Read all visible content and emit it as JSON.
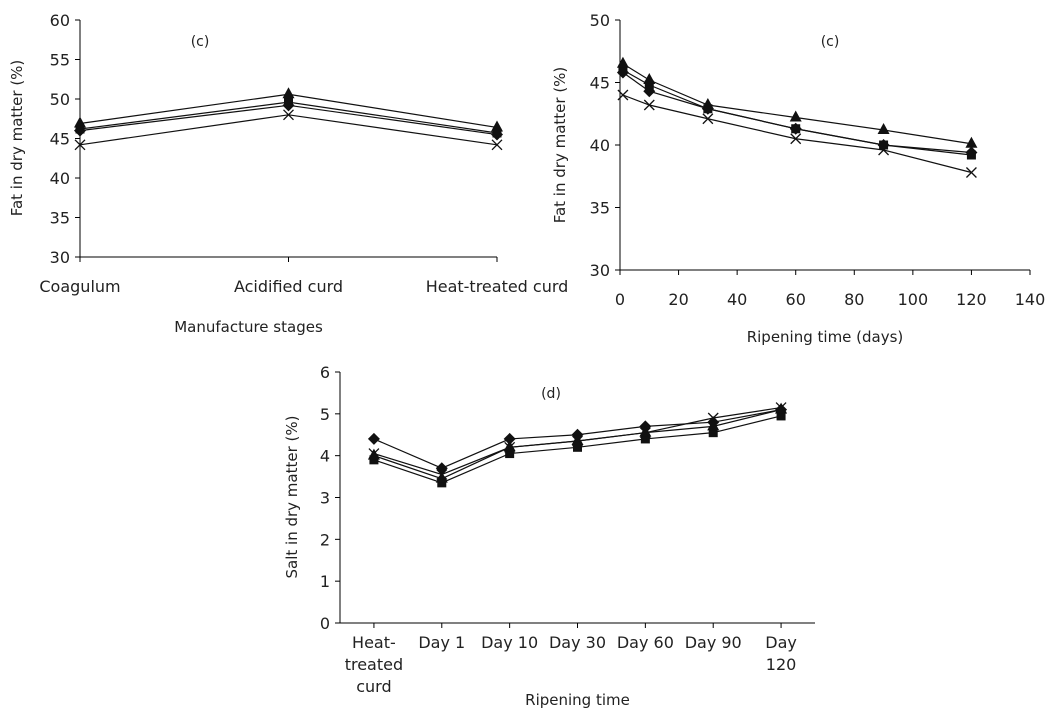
{
  "chart_data": [
    {
      "type": "line",
      "panel_label": "(c)",
      "title": "",
      "xlabel": "Manufacture stages",
      "ylabel": "Fat in dry matter (%)",
      "categories": [
        "Coagulum",
        "Acidified curd",
        "Heat-treated curd"
      ],
      "ylim": [
        30,
        60
      ],
      "yticks": [
        30,
        35,
        40,
        45,
        50,
        55,
        60
      ],
      "grid": false,
      "series": [
        {
          "marker": "diamond",
          "values": [
            46.0,
            49.2,
            45.5
          ]
        },
        {
          "marker": "square",
          "values": [
            46.2,
            49.6,
            45.7
          ]
        },
        {
          "marker": "triangle",
          "values": [
            46.9,
            50.6,
            46.4
          ]
        },
        {
          "marker": "x",
          "values": [
            44.2,
            48.0,
            44.2
          ]
        }
      ]
    },
    {
      "type": "line",
      "panel_label": "(c)",
      "title": "",
      "xlabel": "Ripening time (days)",
      "ylabel": "Fat in dry matter (%)",
      "ylim": [
        30,
        50
      ],
      "xlim": [
        0,
        140
      ],
      "yticks": [
        30,
        35,
        40,
        45,
        50
      ],
      "xticks": [
        0,
        20,
        40,
        60,
        80,
        100,
        120,
        140
      ],
      "grid": false,
      "series": [
        {
          "marker": "diamond",
          "x": [
            1,
            10,
            30,
            60,
            90,
            120
          ],
          "values": [
            45.8,
            44.3,
            42.9,
            41.3,
            40.0,
            39.4
          ]
        },
        {
          "marker": "square",
          "x": [
            1,
            10,
            30,
            60,
            90,
            120
          ],
          "values": [
            46.0,
            44.8,
            42.9,
            41.3,
            40.0,
            39.2
          ]
        },
        {
          "marker": "triangle",
          "x": [
            1,
            10,
            30,
            60,
            90,
            120
          ],
          "values": [
            46.5,
            45.2,
            43.2,
            42.2,
            41.2,
            40.1
          ]
        },
        {
          "marker": "x",
          "x": [
            1,
            10,
            30,
            60,
            90,
            120
          ],
          "values": [
            44.0,
            43.2,
            42.1,
            40.5,
            39.6,
            37.8
          ]
        }
      ]
    },
    {
      "type": "line",
      "panel_label": "(d)",
      "title": "",
      "xlabel": "Ripening time",
      "ylabel": "Salt in dry matter (%)",
      "categories": [
        "Heat-treated curd",
        "Day 1",
        "Day 10",
        "Day 30",
        "Day 60",
        "Day 90",
        "Day 120"
      ],
      "category_lines": [
        [
          "Heat-",
          "treated",
          "curd"
        ],
        [
          "Day 1"
        ],
        [
          "Day 10"
        ],
        [
          "Day 30"
        ],
        [
          "Day 60"
        ],
        [
          "Day 90"
        ],
        [
          "Day",
          "120"
        ]
      ],
      "ylim": [
        0,
        6
      ],
      "yticks": [
        0,
        1,
        2,
        3,
        4,
        5,
        6
      ],
      "grid": false,
      "series": [
        {
          "marker": "diamond",
          "values": [
            4.4,
            3.7,
            4.4,
            4.5,
            4.7,
            4.8,
            5.1
          ]
        },
        {
          "marker": "square",
          "values": [
            3.9,
            3.35,
            4.05,
            4.2,
            4.4,
            4.55,
            4.95
          ]
        },
        {
          "marker": "triangle",
          "values": [
            4.0,
            3.45,
            4.2,
            4.35,
            4.55,
            4.7,
            5.1
          ]
        },
        {
          "marker": "x",
          "values": [
            4.05,
            3.55,
            4.2,
            4.35,
            4.55,
            4.9,
            5.15
          ]
        }
      ]
    }
  ]
}
